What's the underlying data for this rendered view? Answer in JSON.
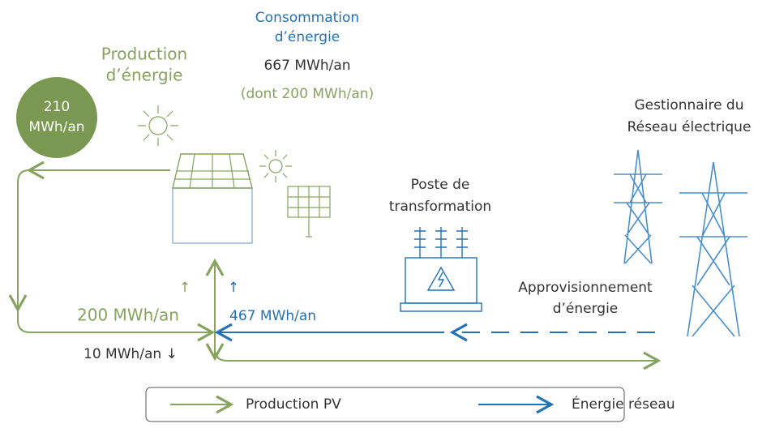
{
  "consumption": {
    "title": [
      "Consommation",
      "d’énergie"
    ],
    "value": "667 MWh/an",
    "note": "(dont 200 MWh/an)"
  },
  "production": {
    "title": [
      "Production",
      "d’énergie"
    ],
    "badge": [
      "210",
      "MWh/an"
    ]
  },
  "grid_operator": [
    "Gestionnaire du",
    "Réseau électrique"
  ],
  "substation": [
    "Poste de",
    "transformation"
  ],
  "supply": [
    "Approvisionnement",
    "d’énergie"
  ],
  "flows": {
    "self_consumed": {
      "arrow": "↑",
      "label": "200 MWh/an"
    },
    "grid_import": {
      "arrow": "↑",
      "label": "467 MWh/an"
    },
    "export": "10 MWh/an ↓"
  },
  "legend": [
    "Production PV",
    "Énergie réseau"
  ]
}
